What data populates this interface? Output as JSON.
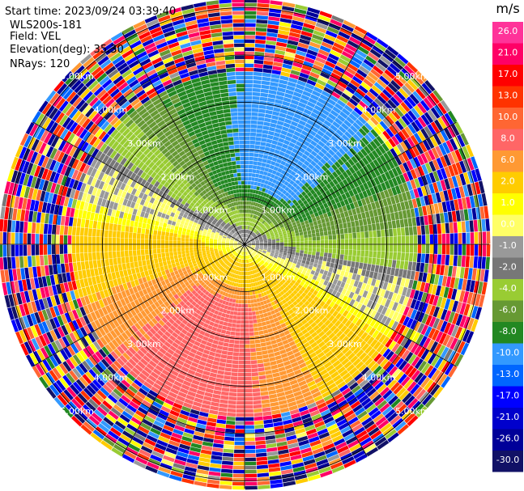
{
  "header": {
    "start_time": "Start time: 2023/09/24 03:39:40",
    "instrument": "WLS200s-181",
    "field": "Field: VEL",
    "elevation": "Elevation(deg): 35.30",
    "nrays": "NRays: 120"
  },
  "range_rings": {
    "ring_values_km": [
      1,
      2,
      3,
      4,
      5
    ],
    "label_text": [
      "1.00km",
      "2.00km",
      "3.00km",
      "4.00km",
      "5.00km"
    ],
    "ring_color": "#000000"
  },
  "colorbar": {
    "unit": "m/s",
    "ticks": [
      "26.0",
      "21.0",
      "17.0",
      "13.0",
      "10.0",
      "8.0",
      "6.0",
      "2.0",
      "1.0",
      "0.0",
      "-1.0",
      "-2.0",
      "-4.0",
      "-6.0",
      "-8.0",
      "-10.0",
      "-13.0",
      "-17.0",
      "-21.0",
      "-26.0",
      "-30.0"
    ],
    "colors": [
      "#ff3399",
      "#ff0066",
      "#ff0000",
      "#ff3300",
      "#ff6633",
      "#ff6666",
      "#ff9933",
      "#ffcc00",
      "#ffff00",
      "#ffff66",
      "#999999",
      "#777777",
      "#99cc33",
      "#669933",
      "#228822",
      "#3399ff",
      "#0066ff",
      "#0000ff",
      "#0000cc",
      "#000099",
      "#111166"
    ]
  },
  "chart_data": {
    "type": "heatmap",
    "projection": "ppi",
    "field": "VEL",
    "units": "m/s",
    "nrays": 120,
    "elevation_deg": 35.3,
    "range_km": [
      0,
      5.6
    ],
    "value_range": [
      -30,
      26
    ]
  }
}
